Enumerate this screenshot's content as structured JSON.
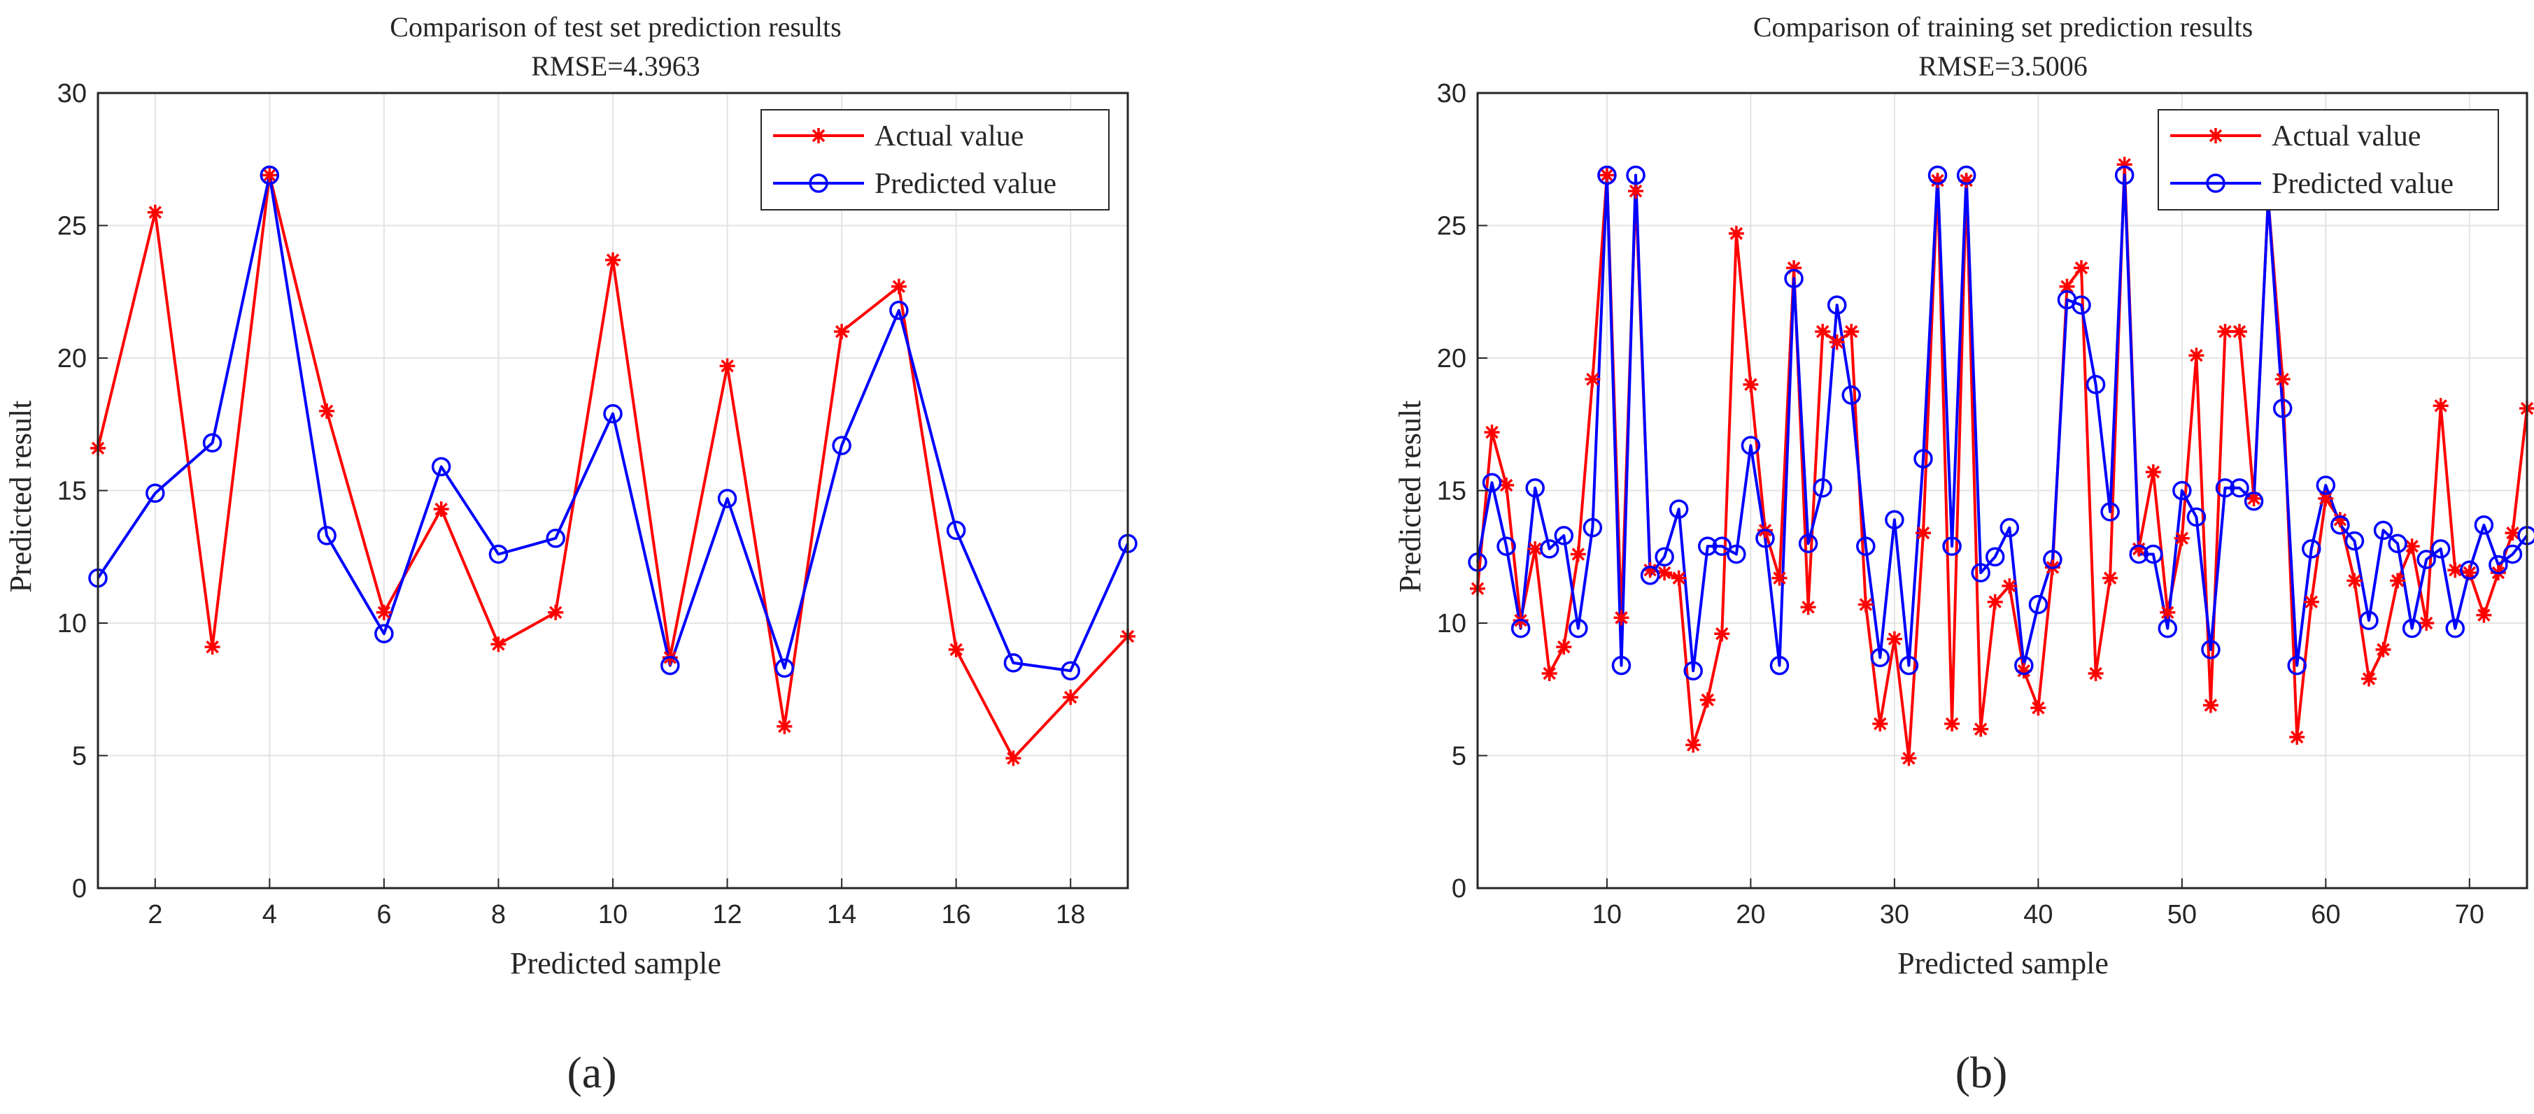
{
  "chart_data": [
    {
      "type": "line",
      "panel_label": "(a)",
      "title": "Comparison of test set prediction results",
      "subtitle": "RMSE=4.3963",
      "xlabel": "Predicted sample",
      "ylabel": "Predicted result",
      "xlim": [
        1,
        19
      ],
      "ylim": [
        0,
        30
      ],
      "xticks": [
        2,
        4,
        6,
        8,
        10,
        12,
        14,
        16,
        18
      ],
      "yticks": [
        0,
        5,
        10,
        15,
        20,
        25,
        30
      ],
      "grid": true,
      "legend_position": "top-right",
      "x": [
        1,
        2,
        3,
        4,
        5,
        6,
        7,
        8,
        9,
        10,
        11,
        12,
        13,
        14,
        15,
        16,
        17,
        18,
        19
      ],
      "series": [
        {
          "name": "Actual value",
          "color": "#ff0000",
          "marker": "asterisk",
          "values": [
            16.6,
            25.5,
            9.1,
            26.9,
            18.0,
            10.4,
            14.3,
            9.2,
            10.4,
            23.7,
            8.7,
            19.7,
            6.1,
            21.0,
            22.7,
            9.0,
            4.9,
            7.2,
            9.5
          ]
        },
        {
          "name": "Predicted value",
          "color": "#0000ff",
          "marker": "circle",
          "values": [
            11.7,
            14.9,
            16.8,
            26.9,
            13.3,
            9.6,
            15.9,
            12.6,
            13.2,
            17.9,
            8.4,
            14.7,
            8.3,
            16.7,
            21.8,
            13.5,
            8.5,
            8.2,
            13.0
          ]
        }
      ]
    },
    {
      "type": "line",
      "panel_label": "(b)",
      "title": "Comparison of training set prediction results",
      "subtitle": "RMSE=3.5006",
      "xlabel": "Predicted sample",
      "ylabel": "Predicted result",
      "xlim": [
        1,
        74
      ],
      "ylim": [
        0,
        30
      ],
      "xticks": [
        10,
        20,
        30,
        40,
        50,
        60,
        70
      ],
      "yticks": [
        0,
        5,
        10,
        15,
        20,
        25,
        30
      ],
      "grid": true,
      "legend_position": "top-right",
      "x": [
        1,
        2,
        3,
        4,
        5,
        6,
        7,
        8,
        9,
        10,
        11,
        12,
        13,
        14,
        15,
        16,
        17,
        18,
        19,
        20,
        21,
        22,
        23,
        24,
        25,
        26,
        27,
        28,
        29,
        30,
        31,
        32,
        33,
        34,
        35,
        36,
        37,
        38,
        39,
        40,
        41,
        42,
        43,
        44,
        45,
        46,
        47,
        48,
        49,
        50,
        51,
        52,
        53,
        54,
        55,
        56,
        57,
        58,
        59,
        60,
        61,
        62,
        63,
        64,
        65,
        66,
        67,
        68,
        69,
        70,
        71,
        72,
        73,
        74
      ],
      "series": [
        {
          "name": "Actual value",
          "color": "#ff0000",
          "marker": "asterisk",
          "values": [
            11.3,
            17.2,
            15.2,
            10.1,
            12.8,
            8.1,
            9.1,
            12.6,
            19.2,
            26.9,
            10.2,
            26.3,
            12.0,
            11.9,
            11.7,
            5.4,
            7.1,
            9.6,
            24.7,
            19.0,
            13.5,
            11.7,
            23.4,
            10.6,
            21.0,
            20.6,
            21.0,
            10.7,
            6.2,
            9.4,
            4.9,
            13.4,
            26.7,
            6.2,
            26.7,
            6.0,
            10.8,
            11.4,
            8.2,
            6.8,
            12.1,
            22.7,
            23.4,
            8.1,
            11.7,
            27.3,
            12.8,
            15.7,
            10.4,
            13.2,
            20.1,
            6.9,
            21.0,
            21.0,
            14.7,
            26.0,
            19.2,
            5.7,
            10.8,
            14.7,
            13.9,
            11.6,
            7.9,
            9.0,
            11.6,
            12.9,
            10.0,
            18.2,
            12.0,
            11.9,
            10.3,
            11.9,
            13.4,
            18.1
          ]
        },
        {
          "name": "Predicted value",
          "color": "#0000ff",
          "marker": "circle",
          "values": [
            12.3,
            15.3,
            12.9,
            9.8,
            15.1,
            12.8,
            13.3,
            9.8,
            13.6,
            26.9,
            8.4,
            26.9,
            11.8,
            12.5,
            14.3,
            8.2,
            12.9,
            12.9,
            12.6,
            16.7,
            13.2,
            8.4,
            23.0,
            13.0,
            15.1,
            22.0,
            18.6,
            12.9,
            8.7,
            13.9,
            8.4,
            16.2,
            26.9,
            12.9,
            26.9,
            11.9,
            12.5,
            13.6,
            8.4,
            10.7,
            12.4,
            22.2,
            22.0,
            19.0,
            14.2,
            26.9,
            12.6,
            12.6,
            9.8,
            15.0,
            14.0,
            9.0,
            15.1,
            15.1,
            14.6,
            26.0,
            18.1,
            8.4,
            12.8,
            15.2,
            13.7,
            13.1,
            10.1,
            13.5,
            13.0,
            9.8,
            12.4,
            12.8,
            9.8,
            12.0,
            13.7,
            12.2,
            12.6,
            13.3
          ]
        }
      ]
    }
  ]
}
